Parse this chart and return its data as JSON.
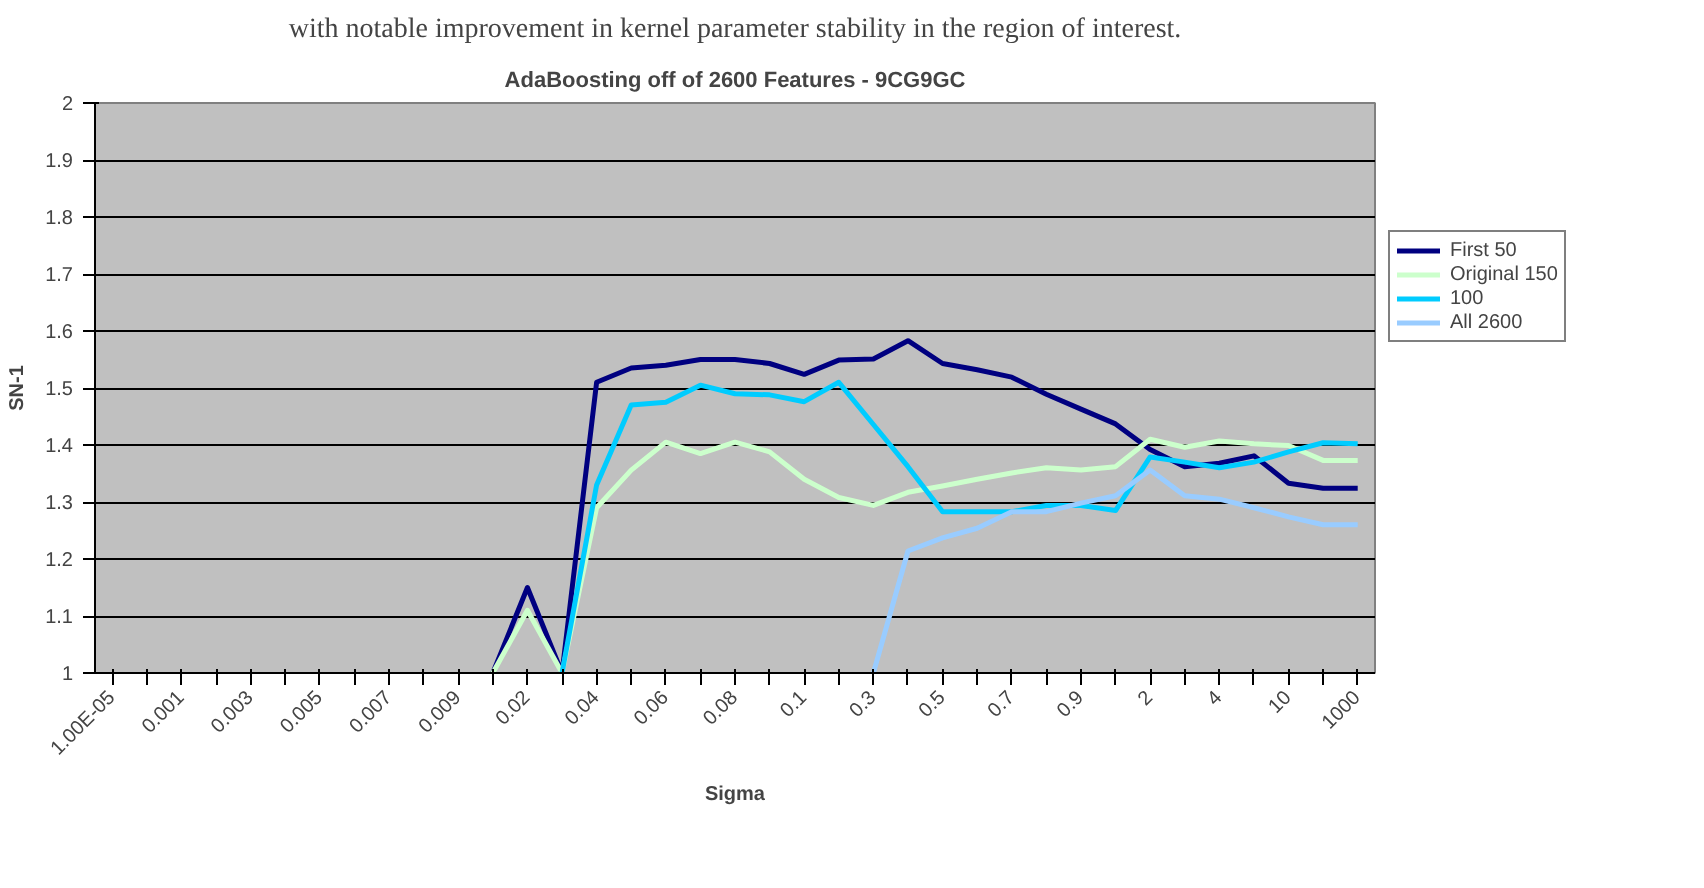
{
  "chart_data": {
    "type": "line",
    "title": "AdaBoosting off of 2600 Features - 9CG9GC",
    "xlabel": "Sigma",
    "ylabel": "SN-1",
    "annotations": [
      "with notable improvement in kernel parameter stability in the region of interest."
    ],
    "categories": [
      "1.00E-05",
      null,
      "0.001",
      null,
      "0.003",
      null,
      "0.005",
      null,
      "0.007",
      null,
      "0.009",
      null,
      "0.02",
      null,
      "0.04",
      null,
      "0.06",
      null,
      "0.08",
      null,
      "0.1",
      null,
      "0.3",
      null,
      "0.5",
      null,
      "0.7",
      null,
      "0.9",
      null,
      "2",
      null,
      "4",
      null,
      "10",
      null,
      "1000"
    ],
    "series": [
      {
        "name": "First 50",
        "color": "#000080",
        "values": [
          null,
          null,
          null,
          null,
          null,
          null,
          null,
          null,
          null,
          null,
          null,
          1.0,
          1.15,
          1.0,
          1.51,
          1.535,
          1.54,
          1.55,
          1.55,
          1.543,
          1.524,
          1.549,
          1.551,
          1.583,
          1.543,
          1.532,
          1.519,
          1.489,
          1.463,
          1.437,
          1.392,
          1.362,
          1.368,
          1.381,
          1.333,
          1.324,
          1.324
        ]
      },
      {
        "name": "Original 150",
        "color": "#ccffcc",
        "values": [
          null,
          null,
          null,
          null,
          null,
          null,
          null,
          null,
          null,
          null,
          null,
          1.0,
          1.11,
          1.0,
          1.29,
          1.356,
          1.405,
          1.385,
          1.405,
          1.388,
          1.34,
          1.308,
          1.294,
          1.317,
          1.328,
          1.34,
          1.351,
          1.36,
          1.356,
          1.362,
          1.41,
          1.396,
          1.407,
          1.402,
          1.399,
          1.373,
          1.373
        ]
      },
      {
        "name": "100",
        "color": "#00ccff",
        "values": [
          null,
          null,
          null,
          null,
          null,
          null,
          null,
          null,
          null,
          null,
          null,
          null,
          null,
          1.0,
          1.33,
          1.47,
          1.475,
          1.505,
          1.49,
          1.488,
          1.476,
          1.51,
          1.436,
          1.362,
          1.283,
          1.283,
          1.283,
          1.294,
          1.294,
          1.285,
          1.379,
          1.37,
          1.36,
          1.37,
          1.388,
          1.404,
          1.402
        ]
      },
      {
        "name": "All 2600",
        "color": "#99ccff",
        "values": [
          null,
          null,
          null,
          null,
          null,
          null,
          null,
          null,
          null,
          null,
          null,
          null,
          null,
          null,
          null,
          null,
          null,
          null,
          null,
          null,
          null,
          null,
          1.0,
          1.214,
          1.237,
          1.254,
          1.283,
          1.283,
          1.298,
          1.311,
          1.356,
          1.311,
          1.305,
          1.29,
          1.274,
          1.26,
          1.26
        ]
      }
    ],
    "ylim": [
      1,
      2
    ],
    "yticks": [
      1,
      1.1,
      1.2,
      1.3,
      1.4,
      1.5,
      1.6,
      1.7,
      1.8,
      1.9,
      2
    ],
    "grid": "y",
    "legend": "right",
    "marker": "none",
    "line_style": "solid"
  }
}
